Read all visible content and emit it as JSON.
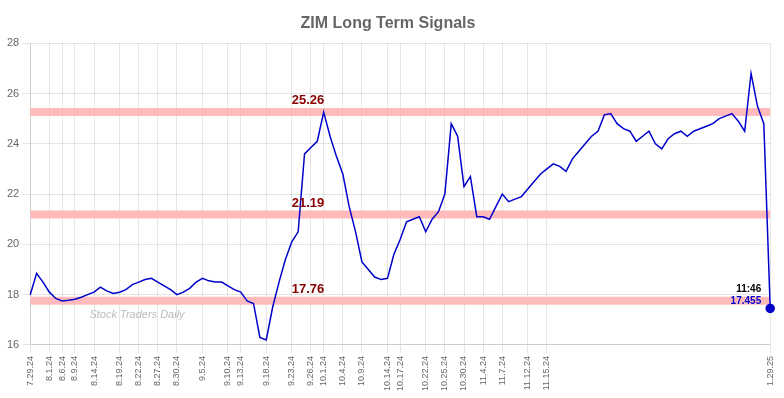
{
  "chart_data": {
    "type": "line",
    "title": "ZIM Long Term Signals",
    "categories": [
      "7.29.24",
      null,
      null,
      "8.1.24",
      null,
      "8.6.24",
      null,
      "8.9.24",
      null,
      null,
      "8.14.24",
      null,
      null,
      null,
      "8.19.24",
      null,
      null,
      "8.22.24",
      null,
      null,
      "8.27.24",
      null,
      null,
      "8.30.24",
      null,
      null,
      null,
      "9.5.24",
      null,
      null,
      null,
      "9.10.24",
      null,
      "9.13.24",
      null,
      null,
      null,
      "9.18.24",
      null,
      null,
      null,
      "9.23.24",
      null,
      null,
      "9.26.24",
      null,
      "10.1.24",
      null,
      null,
      "10.4.24",
      null,
      null,
      "10.9.24",
      null,
      null,
      null,
      "10.14.24",
      null,
      "10.17.24",
      null,
      null,
      null,
      "10.22.24",
      null,
      null,
      "10.25.24",
      null,
      null,
      "10.30.24",
      null,
      null,
      "11.4.24",
      null,
      null,
      "11.7.24",
      null,
      null,
      null,
      "11.12.24",
      null,
      null,
      "11.15.24",
      null,
      null,
      null,
      null,
      null,
      null,
      null,
      null,
      null,
      null,
      null,
      null,
      null,
      null,
      null,
      null,
      null,
      null,
      null,
      null,
      null,
      null,
      null,
      null,
      null,
      null,
      null,
      null,
      null,
      null,
      null,
      null,
      null,
      null,
      "1.29.25"
    ],
    "values": [
      18.0,
      18.85,
      18.5,
      18.1,
      17.85,
      17.75,
      17.78,
      17.82,
      17.9,
      18.0,
      18.1,
      18.3,
      18.15,
      18.05,
      18.1,
      18.2,
      18.4,
      18.5,
      18.6,
      18.65,
      18.5,
      18.35,
      18.2,
      18.0,
      18.1,
      18.25,
      18.5,
      18.65,
      18.55,
      18.5,
      18.5,
      18.35,
      18.2,
      18.1,
      17.75,
      17.65,
      16.3,
      16.2,
      17.5,
      18.5,
      19.4,
      20.1,
      20.5,
      23.6,
      23.85,
      24.1,
      25.26,
      24.3,
      23.5,
      22.8,
      21.5,
      20.5,
      19.3,
      19.0,
      18.7,
      18.6,
      18.65,
      19.6,
      20.2,
      20.9,
      21.0,
      21.1,
      20.5,
      21.0,
      21.3,
      22.0,
      24.8,
      24.3,
      22.3,
      22.7,
      21.1,
      21.1,
      21.0,
      21.5,
      22.0,
      21.7,
      21.8,
      21.9,
      22.2,
      22.5,
      22.8,
      23.0,
      23.2,
      23.1,
      22.9,
      23.4,
      23.7,
      24.0,
      24.3,
      24.5,
      25.15,
      25.2,
      24.8,
      24.6,
      24.5,
      24.1,
      24.3,
      24.5,
      24.0,
      23.8,
      24.2,
      24.4,
      24.5,
      24.3,
      24.5,
      24.6,
      24.7,
      24.8,
      25.0,
      25.1,
      25.2,
      24.9,
      24.5,
      26.8,
      25.5,
      24.8,
      17.455
    ],
    "color": "#0000cc",
    "ylim": [
      16,
      28
    ],
    "yticks": [
      16,
      18,
      20,
      22,
      24,
      26,
      28
    ],
    "grid": true,
    "reference_lines": {
      "values": [
        17.76,
        21.19,
        25.26
      ],
      "color": "#ffbbbb"
    },
    "annotations": [
      {
        "text": "25.26",
        "x": 41,
        "y": 25.26,
        "color": "#880000"
      },
      {
        "text": "21.19",
        "x": 41,
        "y": 21.19,
        "color": "#880000"
      },
      {
        "text": "17.76",
        "x": 41,
        "y": 17.76,
        "color": "#880000"
      }
    ],
    "last_point": {
      "time": "11:46",
      "value": 17.455,
      "value_label": "17.455",
      "color": "#0000cc"
    },
    "watermark": {
      "text": "Stock Traders Daily",
      "color": "#bbbbbb"
    }
  }
}
